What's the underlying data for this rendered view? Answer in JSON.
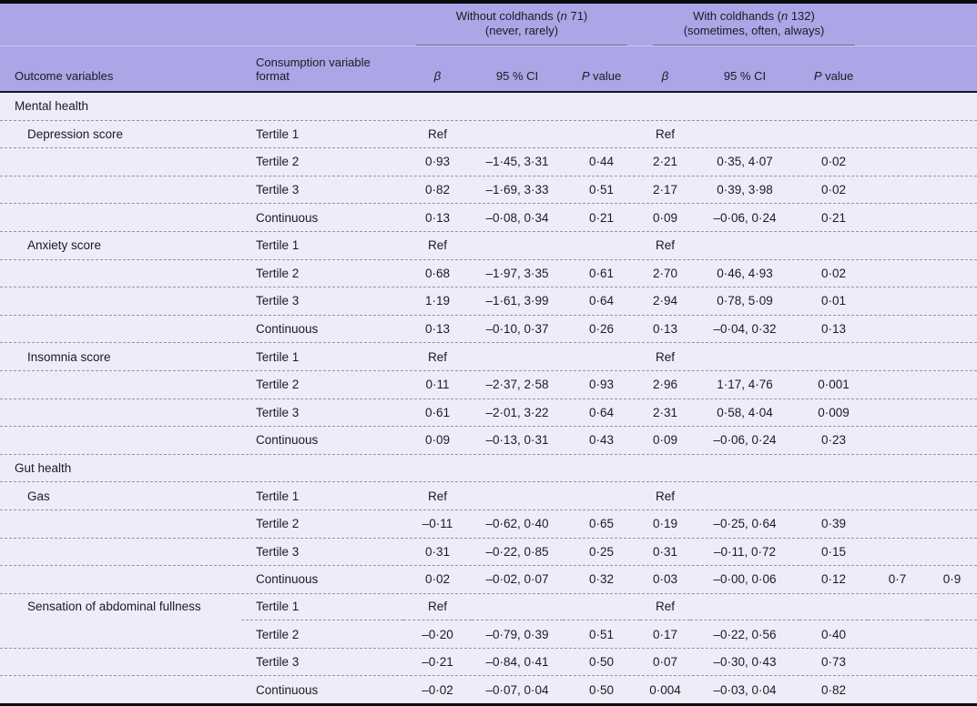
{
  "table": {
    "columns": {
      "outcome": "Outcome variables",
      "format": "Consumption variable format",
      "beta": "β",
      "ci": "95 % CI",
      "p_italic": "P",
      "p_rest": " value"
    },
    "groups": [
      {
        "pre": "Without coldhands (",
        "n": "n",
        "post": " 71)",
        "sub": "(never, rarely)"
      },
      {
        "pre": "With coldhands (",
        "n": "n",
        "post": " 132)",
        "sub": "(sometimes, often, always)"
      }
    ],
    "rows": [
      {
        "type": "section",
        "outcome": "Mental health"
      },
      {
        "type": "data",
        "outcome": "Depression score",
        "format": "Tertile 1",
        "cells": [
          "Ref",
          "",
          "",
          "Ref",
          "",
          "",
          "",
          ""
        ]
      },
      {
        "type": "data",
        "outcome": "",
        "format": "Tertile 2",
        "cells": [
          "0·93",
          "–1·45, 3·31",
          "0·44",
          "2·21",
          "0·35, 4·07",
          "0·02",
          "",
          ""
        ]
      },
      {
        "type": "data",
        "outcome": "",
        "format": "Tertile 3",
        "cells": [
          "0·82",
          "–1·69, 3·33",
          "0·51",
          "2·17",
          "0·39, 3·98",
          "0·02",
          "",
          ""
        ]
      },
      {
        "type": "data",
        "outcome": "",
        "format": "Continuous",
        "cells": [
          "0·13",
          "–0·08, 0·34",
          "0·21",
          "0·09",
          "–0·06, 0·24",
          "0·21",
          "",
          ""
        ]
      },
      {
        "type": "data",
        "outcome": "Anxiety score",
        "format": "Tertile 1",
        "cells": [
          "Ref",
          "",
          "",
          "Ref",
          "",
          "",
          "",
          ""
        ]
      },
      {
        "type": "data",
        "outcome": "",
        "format": "Tertile 2",
        "cells": [
          "0·68",
          "–1·97, 3·35",
          "0·61",
          "2·70",
          "0·46, 4·93",
          "0·02",
          "",
          ""
        ]
      },
      {
        "type": "data",
        "outcome": "",
        "format": "Tertile 3",
        "cells": [
          "1·19",
          "–1·61, 3·99",
          "0·64",
          "2·94",
          "0·78, 5·09",
          "0·01",
          "",
          ""
        ]
      },
      {
        "type": "data",
        "outcome": "",
        "format": "Continuous",
        "cells": [
          "0·13",
          "–0·10, 0·37",
          "0·26",
          "0·13",
          "–0·04, 0·32",
          "0·13",
          "",
          ""
        ]
      },
      {
        "type": "data",
        "outcome": "Insomnia score",
        "format": "Tertile 1",
        "cells": [
          "Ref",
          "",
          "",
          "Ref",
          "",
          "",
          "",
          ""
        ]
      },
      {
        "type": "data",
        "outcome": "",
        "format": "Tertile 2",
        "cells": [
          "0·11",
          "–2·37, 2·58",
          "0·93",
          "2·96",
          "1·17, 4·76",
          "0·001",
          "",
          ""
        ]
      },
      {
        "type": "data",
        "outcome": "",
        "format": "Tertile 3",
        "cells": [
          "0·61",
          "–2·01, 3·22",
          "0·64",
          "2·31",
          "0·58, 4·04",
          "0·009",
          "",
          ""
        ]
      },
      {
        "type": "data",
        "outcome": "",
        "format": "Continuous",
        "cells": [
          "0·09",
          "–0·13, 0·31",
          "0·43",
          "0·09",
          "–0·06, 0·24",
          "0·23",
          "",
          ""
        ]
      },
      {
        "type": "section",
        "outcome": "Gut health"
      },
      {
        "type": "data",
        "outcome": "Gas",
        "format": "Tertile 1",
        "cells": [
          "Ref",
          "",
          "",
          "Ref",
          "",
          "",
          "",
          ""
        ]
      },
      {
        "type": "data",
        "outcome": "",
        "format": "Tertile 2",
        "cells": [
          "–0·11",
          "–0·62, 0·40",
          "0·65",
          "0·19",
          "–0·25, 0·64",
          "0·39",
          "",
          ""
        ]
      },
      {
        "type": "data",
        "outcome": "",
        "format": "Tertile 3",
        "cells": [
          "0·31",
          "–0·22, 0·85",
          "0·25",
          "0·31",
          "–0·11, 0·72",
          "0·15",
          "",
          ""
        ]
      },
      {
        "type": "data",
        "outcome": "",
        "format": "Continuous",
        "cells": [
          "0·02",
          "–0·02, 0·07",
          "0·32",
          "0·03",
          "–0·00, 0·06",
          "0·12",
          "0·7",
          "0·9"
        ]
      },
      {
        "type": "data",
        "sep": "partial",
        "outcome": "Sensation of abdominal fullness",
        "format": "Tertile 1",
        "cells": [
          "Ref",
          "",
          "",
          "Ref",
          "",
          "",
          "",
          ""
        ]
      },
      {
        "type": "data",
        "outcome": "",
        "format": "Tertile 2",
        "cells": [
          "–0·20",
          "–0·79, 0·39",
          "0·51",
          "0·17",
          "–0·22, 0·56",
          "0·40",
          "",
          ""
        ]
      },
      {
        "type": "data",
        "outcome": "",
        "format": "Tertile 3",
        "cells": [
          "–0·21",
          "–0·84, 0·41",
          "0·50",
          "0·07",
          "–0·30, 0·43",
          "0·73",
          "",
          ""
        ]
      },
      {
        "type": "data",
        "outcome": "",
        "format": "Continuous",
        "cells": [
          "–0·02",
          "–0·07, 0·04",
          "0·50",
          "0·004",
          "–0·03, 0·04",
          "0·82",
          "",
          ""
        ]
      }
    ]
  }
}
